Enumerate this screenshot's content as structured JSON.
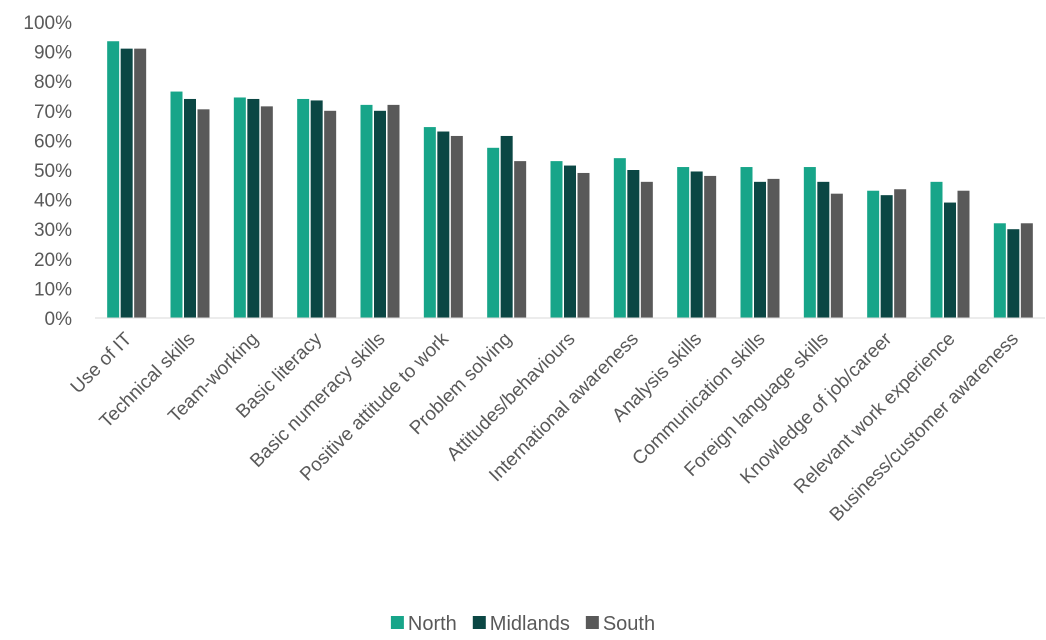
{
  "chart_data": {
    "type": "bar",
    "title": "",
    "xlabel": "",
    "ylabel": "",
    "ylim": [
      0,
      100
    ],
    "ytick_step": 10,
    "y_format": "percent",
    "grid": false,
    "legend_position": "bottom",
    "categories": [
      "Use of IT",
      "Technical skills",
      "Team-working",
      "Basic literacy",
      "Basic numeracy skills",
      "Positive attitude to work",
      "Problem solving",
      "Attitudes/behaviours",
      "International awareness",
      "Analysis skills",
      "Communication skills",
      "Foreign language skills",
      "Knowledge of job/career",
      "Relevant work experience",
      "Business/customer awareness"
    ],
    "series": [
      {
        "name": "North",
        "color": "#17a589",
        "values": [
          93.5,
          76.5,
          74.5,
          74,
          72,
          64.5,
          57.5,
          53,
          54,
          51,
          51,
          51,
          43,
          46,
          32
        ]
      },
      {
        "name": "Midlands",
        "color": "#0b4744",
        "values": [
          91,
          74,
          74,
          73.5,
          70,
          63,
          61.5,
          51.5,
          50,
          49.5,
          46,
          46,
          41.5,
          39,
          30
        ]
      },
      {
        "name": "South",
        "color": "#595959",
        "values": [
          91,
          70.5,
          71.5,
          70,
          72,
          61.5,
          53,
          49,
          46,
          48,
          47,
          42,
          43.5,
          43,
          32
        ]
      }
    ]
  }
}
